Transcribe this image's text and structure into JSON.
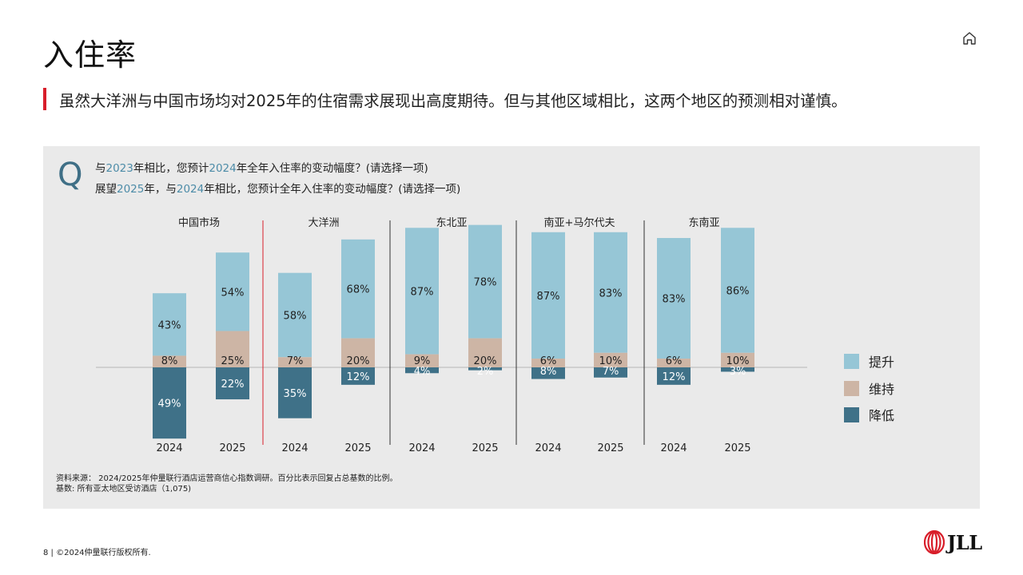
{
  "header": {
    "title": "入住率",
    "subtitle": "虽然大洋洲与中国市场均对2025年的住宿需求展现出高度期待。但与其他区域相比，这两个地区的预测相对谨慎。"
  },
  "icons": {
    "home": "home-icon",
    "question": "Q"
  },
  "question": {
    "line1": {
      "p1": "与",
      "y1": "2023",
      "p2": "年相比，您预计",
      "y2": "2024",
      "p3": "年全年入住率的变动幅度？(请选择一项)"
    },
    "line2": {
      "p1": "展望",
      "y1": "2025",
      "p2": "年，与",
      "y2": "2024",
      "p3": "年相比，您预计全年入住率的变动幅度？(请选择一项)"
    }
  },
  "colors": {
    "increase": "#96c6d6",
    "maintain": "#cdb5a5",
    "decrease": "#3f7188",
    "accent_red": "#d81e2a",
    "panel_bg": "#eaeaea",
    "year_highlight": "#4d8ca8"
  },
  "chart_data": {
    "type": "bar",
    "subtype": "stacked-diverging",
    "units": "%",
    "regions": [
      {
        "name": "中国市场",
        "bars": [
          {
            "year": "2024",
            "increase": 43,
            "maintain": 8,
            "decrease": 49
          },
          {
            "year": "2025",
            "increase": 54,
            "maintain": 25,
            "decrease": 22
          }
        ]
      },
      {
        "name": "大洋洲",
        "bars": [
          {
            "year": "2024",
            "increase": 58,
            "maintain": 7,
            "decrease": 35
          },
          {
            "year": "2025",
            "increase": 68,
            "maintain": 20,
            "decrease": 12
          }
        ]
      },
      {
        "name": "东北亚",
        "bars": [
          {
            "year": "2024",
            "increase": 87,
            "maintain": 9,
            "decrease": 4
          },
          {
            "year": "2025",
            "increase": 78,
            "maintain": 20,
            "decrease": 2
          }
        ]
      },
      {
        "name": "南亚+马尔代夫",
        "bars": [
          {
            "year": "2024",
            "increase": 87,
            "maintain": 6,
            "decrease": 8
          },
          {
            "year": "2025",
            "increase": 83,
            "maintain": 10,
            "decrease": 7
          }
        ]
      },
      {
        "name": "东南亚",
        "bars": [
          {
            "year": "2024",
            "increase": 83,
            "maintain": 6,
            "decrease": 12
          },
          {
            "year": "2025",
            "increase": 86,
            "maintain": 10,
            "decrease": 3
          }
        ]
      }
    ],
    "legend": [
      {
        "key": "increase",
        "label": "提升"
      },
      {
        "key": "maintain",
        "label": "维持"
      },
      {
        "key": "decrease",
        "label": "降低"
      }
    ],
    "legend_position": "right",
    "grid": false
  },
  "source": {
    "line1": "资料来源： 2024/2025年仲量联行酒店运营商信心指数调研。百分比表示回复占总基数的比例。",
    "line2": "基数: 所有亚太地区受访酒店（1,075)"
  },
  "footer": {
    "text": "8 | ©2024仲量联行版权所有."
  },
  "logo": {
    "text": "JLL"
  }
}
